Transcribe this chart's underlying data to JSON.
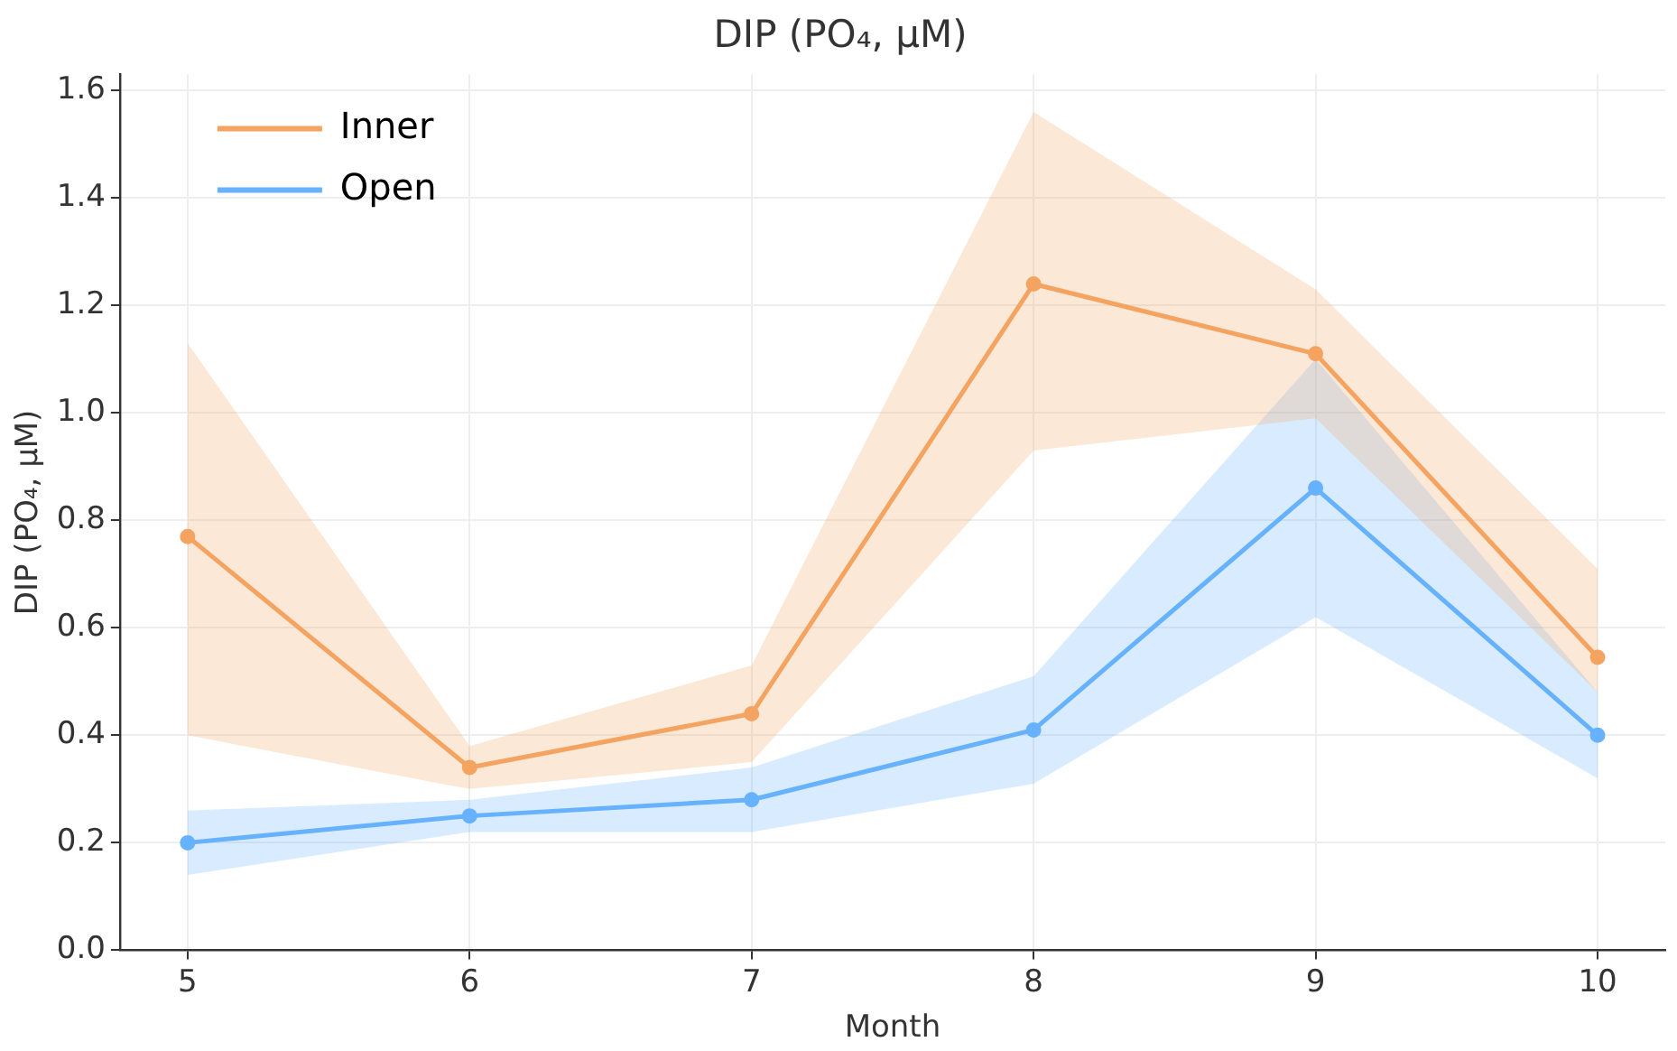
{
  "chart_data": {
    "type": "line",
    "title": "DIP (PO₄, µM)",
    "xlabel": "Month",
    "ylabel": "DIP (PO₄, µM)",
    "x": [
      5,
      6,
      7,
      8,
      9,
      10
    ],
    "xlim": [
      4.76,
      10.24
    ],
    "xticks": [
      5,
      6,
      7,
      8,
      9,
      10
    ],
    "ylim": [
      0,
      1.63
    ],
    "yticks": [
      {
        "value": 0,
        "label": "0.0"
      },
      0.2,
      0.4,
      0.6,
      0.8,
      {
        "value": 1,
        "label": "1.0"
      },
      1.2,
      1.4,
      1.6
    ],
    "series": [
      {
        "name": "Inner",
        "color": "#f4a460",
        "values": [
          0.77,
          0.34,
          0.44,
          1.24,
          1.11,
          0.545
        ],
        "lower": [
          0.4,
          0.3,
          0.35,
          0.93,
          0.99,
          0.48
        ],
        "upper": [
          1.13,
          0.38,
          0.53,
          1.56,
          1.23,
          0.71
        ]
      },
      {
        "name": "Open",
        "color": "#66b2ff",
        "values": [
          0.2,
          0.25,
          0.28,
          0.41,
          0.86,
          0.4
        ],
        "lower": [
          0.14,
          0.22,
          0.22,
          0.31,
          0.62,
          0.32
        ],
        "upper": [
          0.26,
          0.28,
          0.34,
          0.51,
          1.1,
          0.48
        ]
      }
    ],
    "grid": true,
    "legend": "top left",
    "marker": "circle",
    "line_style": "solid"
  }
}
